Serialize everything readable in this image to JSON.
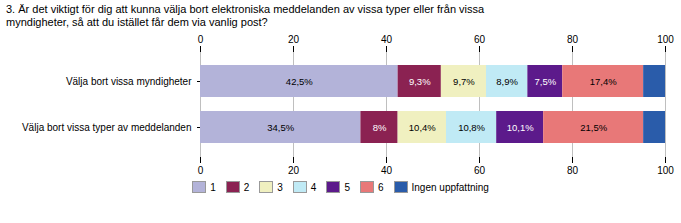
{
  "chart_data": {
    "type": "bar",
    "orientation": "horizontal",
    "stacked": true,
    "title": "3. Är det viktigt för dig att kunna välja bort elektroniska meddelanden av vissa typer eller från vissa\nmyndigheter, så att du istället får dem via vanlig post?",
    "categories": [
      "Välja bort vissa myndigheter",
      "Välja bort vissa typer av meddelanden"
    ],
    "series": [
      {
        "name": "1",
        "color": "#b3b3d9",
        "values": [
          42.5,
          34.5
        ],
        "value_labels": [
          "42,5%",
          "34,5%"
        ]
      },
      {
        "name": "2",
        "color": "#8b2252",
        "values": [
          9.3,
          8.0
        ],
        "value_labels": [
          "9,3%",
          "8%"
        ]
      },
      {
        "name": "3",
        "color": "#f0f0c0",
        "values": [
          9.7,
          10.4
        ],
        "value_labels": [
          "9,7%",
          "10,4%"
        ]
      },
      {
        "name": "4",
        "color": "#c0eaf5",
        "values": [
          8.9,
          10.8
        ],
        "value_labels": [
          "8,9%",
          "10,8%"
        ]
      },
      {
        "name": "5",
        "color": "#5c1a8b",
        "values": [
          7.5,
          10.1
        ],
        "value_labels": [
          "7,5%",
          "10,1%"
        ]
      },
      {
        "name": "6",
        "color": "#e87878",
        "values": [
          17.4,
          21.5
        ],
        "value_labels": [
          "17,4%",
          "21,5%"
        ]
      },
      {
        "name": "Ingen uppfattning",
        "color": "#2a5caa",
        "values": [
          4.7,
          4.7
        ],
        "value_labels": [
          null,
          null
        ]
      }
    ],
    "xlim": [
      0,
      100
    ],
    "xticks": [
      0,
      20,
      40,
      60,
      80,
      100
    ],
    "grid": true,
    "legend": "bottom"
  }
}
